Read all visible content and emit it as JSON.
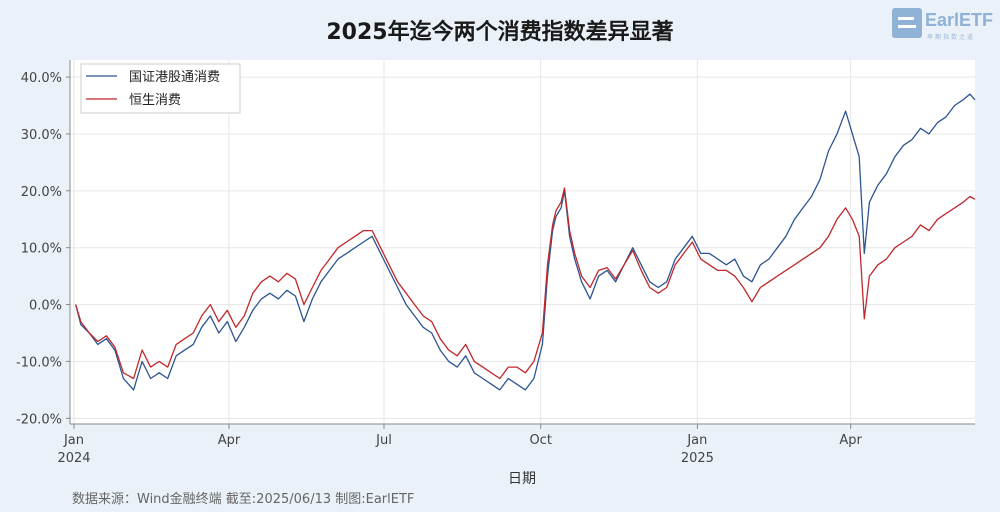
{
  "chart_data": {
    "type": "line",
    "title": "2025年迄今两个消费指数差异显著",
    "xlabel": "日期",
    "ylabel": "",
    "ylim": [
      -0.21,
      0.43
    ],
    "xlim": [
      "2024-01-01",
      "2025-06-13"
    ],
    "y_ticks": [
      "40.0%",
      "30.0%",
      "20.0%",
      "10.0%",
      "0.0%",
      "-10.0%",
      "-20.0%"
    ],
    "y_tick_values": [
      0.4,
      0.3,
      0.2,
      0.1,
      0.0,
      -0.1,
      -0.2
    ],
    "x_ticks": [
      {
        "date": "2024-01-01",
        "label": "Jan",
        "year": "2024"
      },
      {
        "date": "2024-04-01",
        "label": "Apr",
        "year": ""
      },
      {
        "date": "2024-07-01",
        "label": "Jul",
        "year": ""
      },
      {
        "date": "2024-10-01",
        "label": "Oct",
        "year": ""
      },
      {
        "date": "2025-01-01",
        "label": "Jan",
        "year": "2025"
      },
      {
        "date": "2025-04-01",
        "label": "Apr",
        "year": ""
      }
    ],
    "grid": true,
    "legend_position": "top-left",
    "series": [
      {
        "name": "国证港股通消费",
        "color": "#2d5592",
        "points": [
          [
            "2024-01-02",
            0.0
          ],
          [
            "2024-01-05",
            -0.035
          ],
          [
            "2024-01-10",
            -0.05
          ],
          [
            "2024-01-15",
            -0.07
          ],
          [
            "2024-01-20",
            -0.06
          ],
          [
            "2024-01-25",
            -0.08
          ],
          [
            "2024-01-30",
            -0.13
          ],
          [
            "2024-02-05",
            -0.15
          ],
          [
            "2024-02-10",
            -0.1
          ],
          [
            "2024-02-15",
            -0.13
          ],
          [
            "2024-02-20",
            -0.12
          ],
          [
            "2024-02-25",
            -0.13
          ],
          [
            "2024-03-01",
            -0.09
          ],
          [
            "2024-03-06",
            -0.08
          ],
          [
            "2024-03-11",
            -0.07
          ],
          [
            "2024-03-16",
            -0.04
          ],
          [
            "2024-03-21",
            -0.02
          ],
          [
            "2024-03-26",
            -0.05
          ],
          [
            "2024-03-31",
            -0.03
          ],
          [
            "2024-04-05",
            -0.065
          ],
          [
            "2024-04-10",
            -0.04
          ],
          [
            "2024-04-15",
            -0.01
          ],
          [
            "2024-04-20",
            0.01
          ],
          [
            "2024-04-25",
            0.02
          ],
          [
            "2024-04-30",
            0.01
          ],
          [
            "2024-05-05",
            0.025
          ],
          [
            "2024-05-10",
            0.015
          ],
          [
            "2024-05-15",
            -0.03
          ],
          [
            "2024-05-20",
            0.01
          ],
          [
            "2024-05-25",
            0.04
          ],
          [
            "2024-05-30",
            0.06
          ],
          [
            "2024-06-04",
            0.08
          ],
          [
            "2024-06-09",
            0.09
          ],
          [
            "2024-06-14",
            0.1
          ],
          [
            "2024-06-19",
            0.11
          ],
          [
            "2024-06-24",
            0.12
          ],
          [
            "2024-06-29",
            0.09
          ],
          [
            "2024-07-04",
            0.06
          ],
          [
            "2024-07-09",
            0.03
          ],
          [
            "2024-07-14",
            0.0
          ],
          [
            "2024-07-19",
            -0.02
          ],
          [
            "2024-07-24",
            -0.04
          ],
          [
            "2024-07-29",
            -0.05
          ],
          [
            "2024-08-03",
            -0.08
          ],
          [
            "2024-08-08",
            -0.1
          ],
          [
            "2024-08-13",
            -0.11
          ],
          [
            "2024-08-18",
            -0.09
          ],
          [
            "2024-08-23",
            -0.12
          ],
          [
            "2024-08-28",
            -0.13
          ],
          [
            "2024-09-02",
            -0.14
          ],
          [
            "2024-09-07",
            -0.15
          ],
          [
            "2024-09-12",
            -0.13
          ],
          [
            "2024-09-17",
            -0.14
          ],
          [
            "2024-09-22",
            -0.15
          ],
          [
            "2024-09-27",
            -0.13
          ],
          [
            "2024-10-02",
            -0.07
          ],
          [
            "2024-10-05",
            0.05
          ],
          [
            "2024-10-08",
            0.13
          ],
          [
            "2024-10-10",
            0.155
          ],
          [
            "2024-10-13",
            0.17
          ],
          [
            "2024-10-15",
            0.2
          ],
          [
            "2024-10-18",
            0.12
          ],
          [
            "2024-10-21",
            0.08
          ],
          [
            "2024-10-25",
            0.04
          ],
          [
            "2024-10-30",
            0.01
          ],
          [
            "2024-11-04",
            0.05
          ],
          [
            "2024-11-09",
            0.06
          ],
          [
            "2024-11-14",
            0.04
          ],
          [
            "2024-11-19",
            0.07
          ],
          [
            "2024-11-24",
            0.1
          ],
          [
            "2024-11-29",
            0.07
          ],
          [
            "2024-12-04",
            0.04
          ],
          [
            "2024-12-09",
            0.03
          ],
          [
            "2024-12-14",
            0.04
          ],
          [
            "2024-12-19",
            0.08
          ],
          [
            "2024-12-24",
            0.1
          ],
          [
            "2024-12-29",
            0.12
          ],
          [
            "2025-01-03",
            0.09
          ],
          [
            "2025-01-08",
            0.09
          ],
          [
            "2025-01-13",
            0.08
          ],
          [
            "2025-01-18",
            0.07
          ],
          [
            "2025-01-23",
            0.08
          ],
          [
            "2025-01-28",
            0.05
          ],
          [
            "2025-02-02",
            0.04
          ],
          [
            "2025-02-07",
            0.07
          ],
          [
            "2025-02-12",
            0.08
          ],
          [
            "2025-02-17",
            0.1
          ],
          [
            "2025-02-22",
            0.12
          ],
          [
            "2025-02-27",
            0.15
          ],
          [
            "2025-03-04",
            0.17
          ],
          [
            "2025-03-09",
            0.19
          ],
          [
            "2025-03-14",
            0.22
          ],
          [
            "2025-03-19",
            0.27
          ],
          [
            "2025-03-24",
            0.3
          ],
          [
            "2025-03-29",
            0.34
          ],
          [
            "2025-04-02",
            0.3
          ],
          [
            "2025-04-06",
            0.26
          ],
          [
            "2025-04-09",
            0.09
          ],
          [
            "2025-04-12",
            0.18
          ],
          [
            "2025-04-17",
            0.21
          ],
          [
            "2025-04-22",
            0.23
          ],
          [
            "2025-04-27",
            0.26
          ],
          [
            "2025-05-02",
            0.28
          ],
          [
            "2025-05-07",
            0.29
          ],
          [
            "2025-05-12",
            0.31
          ],
          [
            "2025-05-17",
            0.3
          ],
          [
            "2025-05-22",
            0.32
          ],
          [
            "2025-05-27",
            0.33
          ],
          [
            "2025-06-01",
            0.35
          ],
          [
            "2025-06-06",
            0.36
          ],
          [
            "2025-06-10",
            0.37
          ],
          [
            "2025-06-13",
            0.36
          ]
        ]
      },
      {
        "name": "恒生消费",
        "color": "#c0282d",
        "points": [
          [
            "2024-01-02",
            0.0
          ],
          [
            "2024-01-05",
            -0.03
          ],
          [
            "2024-01-10",
            -0.05
          ],
          [
            "2024-01-15",
            -0.065
          ],
          [
            "2024-01-20",
            -0.055
          ],
          [
            "2024-01-25",
            -0.075
          ],
          [
            "2024-01-30",
            -0.12
          ],
          [
            "2024-02-05",
            -0.13
          ],
          [
            "2024-02-10",
            -0.08
          ],
          [
            "2024-02-15",
            -0.11
          ],
          [
            "2024-02-20",
            -0.1
          ],
          [
            "2024-02-25",
            -0.11
          ],
          [
            "2024-03-01",
            -0.07
          ],
          [
            "2024-03-06",
            -0.06
          ],
          [
            "2024-03-11",
            -0.05
          ],
          [
            "2024-03-16",
            -0.02
          ],
          [
            "2024-03-21",
            0.0
          ],
          [
            "2024-03-26",
            -0.03
          ],
          [
            "2024-03-31",
            -0.01
          ],
          [
            "2024-04-05",
            -0.04
          ],
          [
            "2024-04-10",
            -0.02
          ],
          [
            "2024-04-15",
            0.02
          ],
          [
            "2024-04-20",
            0.04
          ],
          [
            "2024-04-25",
            0.05
          ],
          [
            "2024-04-30",
            0.04
          ],
          [
            "2024-05-05",
            0.055
          ],
          [
            "2024-05-10",
            0.045
          ],
          [
            "2024-05-15",
            0.0
          ],
          [
            "2024-05-20",
            0.03
          ],
          [
            "2024-05-25",
            0.06
          ],
          [
            "2024-05-30",
            0.08
          ],
          [
            "2024-06-04",
            0.1
          ],
          [
            "2024-06-09",
            0.11
          ],
          [
            "2024-06-14",
            0.12
          ],
          [
            "2024-06-19",
            0.13
          ],
          [
            "2024-06-24",
            0.13
          ],
          [
            "2024-06-29",
            0.1
          ],
          [
            "2024-07-04",
            0.07
          ],
          [
            "2024-07-09",
            0.04
          ],
          [
            "2024-07-14",
            0.02
          ],
          [
            "2024-07-19",
            0.0
          ],
          [
            "2024-07-24",
            -0.02
          ],
          [
            "2024-07-29",
            -0.03
          ],
          [
            "2024-08-03",
            -0.06
          ],
          [
            "2024-08-08",
            -0.08
          ],
          [
            "2024-08-13",
            -0.09
          ],
          [
            "2024-08-18",
            -0.07
          ],
          [
            "2024-08-23",
            -0.1
          ],
          [
            "2024-08-28",
            -0.11
          ],
          [
            "2024-09-02",
            -0.12
          ],
          [
            "2024-09-07",
            -0.13
          ],
          [
            "2024-09-12",
            -0.11
          ],
          [
            "2024-09-17",
            -0.11
          ],
          [
            "2024-09-22",
            -0.12
          ],
          [
            "2024-09-27",
            -0.1
          ],
          [
            "2024-10-02",
            -0.05
          ],
          [
            "2024-10-05",
            0.07
          ],
          [
            "2024-10-08",
            0.14
          ],
          [
            "2024-10-10",
            0.165
          ],
          [
            "2024-10-13",
            0.18
          ],
          [
            "2024-10-15",
            0.205
          ],
          [
            "2024-10-18",
            0.13
          ],
          [
            "2024-10-21",
            0.09
          ],
          [
            "2024-10-25",
            0.05
          ],
          [
            "2024-10-30",
            0.03
          ],
          [
            "2024-11-04",
            0.06
          ],
          [
            "2024-11-09",
            0.065
          ],
          [
            "2024-11-14",
            0.045
          ],
          [
            "2024-11-19",
            0.07
          ],
          [
            "2024-11-24",
            0.095
          ],
          [
            "2024-11-29",
            0.06
          ],
          [
            "2024-12-04",
            0.03
          ],
          [
            "2024-12-09",
            0.02
          ],
          [
            "2024-12-14",
            0.03
          ],
          [
            "2024-12-19",
            0.07
          ],
          [
            "2024-12-24",
            0.09
          ],
          [
            "2024-12-29",
            0.11
          ],
          [
            "2025-01-03",
            0.08
          ],
          [
            "2025-01-08",
            0.07
          ],
          [
            "2025-01-13",
            0.06
          ],
          [
            "2025-01-18",
            0.06
          ],
          [
            "2025-01-23",
            0.05
          ],
          [
            "2025-01-28",
            0.03
          ],
          [
            "2025-02-02",
            0.005
          ],
          [
            "2025-02-07",
            0.03
          ],
          [
            "2025-02-12",
            0.04
          ],
          [
            "2025-02-17",
            0.05
          ],
          [
            "2025-02-22",
            0.06
          ],
          [
            "2025-02-27",
            0.07
          ],
          [
            "2025-03-04",
            0.08
          ],
          [
            "2025-03-09",
            0.09
          ],
          [
            "2025-03-14",
            0.1
          ],
          [
            "2025-03-19",
            0.12
          ],
          [
            "2025-03-24",
            0.15
          ],
          [
            "2025-03-29",
            0.17
          ],
          [
            "2025-04-02",
            0.15
          ],
          [
            "2025-04-06",
            0.12
          ],
          [
            "2025-04-09",
            -0.025
          ],
          [
            "2025-04-12",
            0.05
          ],
          [
            "2025-04-17",
            0.07
          ],
          [
            "2025-04-22",
            0.08
          ],
          [
            "2025-04-27",
            0.1
          ],
          [
            "2025-05-02",
            0.11
          ],
          [
            "2025-05-07",
            0.12
          ],
          [
            "2025-05-12",
            0.14
          ],
          [
            "2025-05-17",
            0.13
          ],
          [
            "2025-05-22",
            0.15
          ],
          [
            "2025-05-27",
            0.16
          ],
          [
            "2025-06-01",
            0.17
          ],
          [
            "2025-06-06",
            0.18
          ],
          [
            "2025-06-10",
            0.19
          ],
          [
            "2025-06-13",
            0.185
          ]
        ]
      }
    ]
  },
  "logo": {
    "text": "EarlETF",
    "sub": "早期指数之道"
  },
  "footer": {
    "text": "数据来源：Wind金融终端 截至:2025/06/13 制图:EarlETF"
  }
}
